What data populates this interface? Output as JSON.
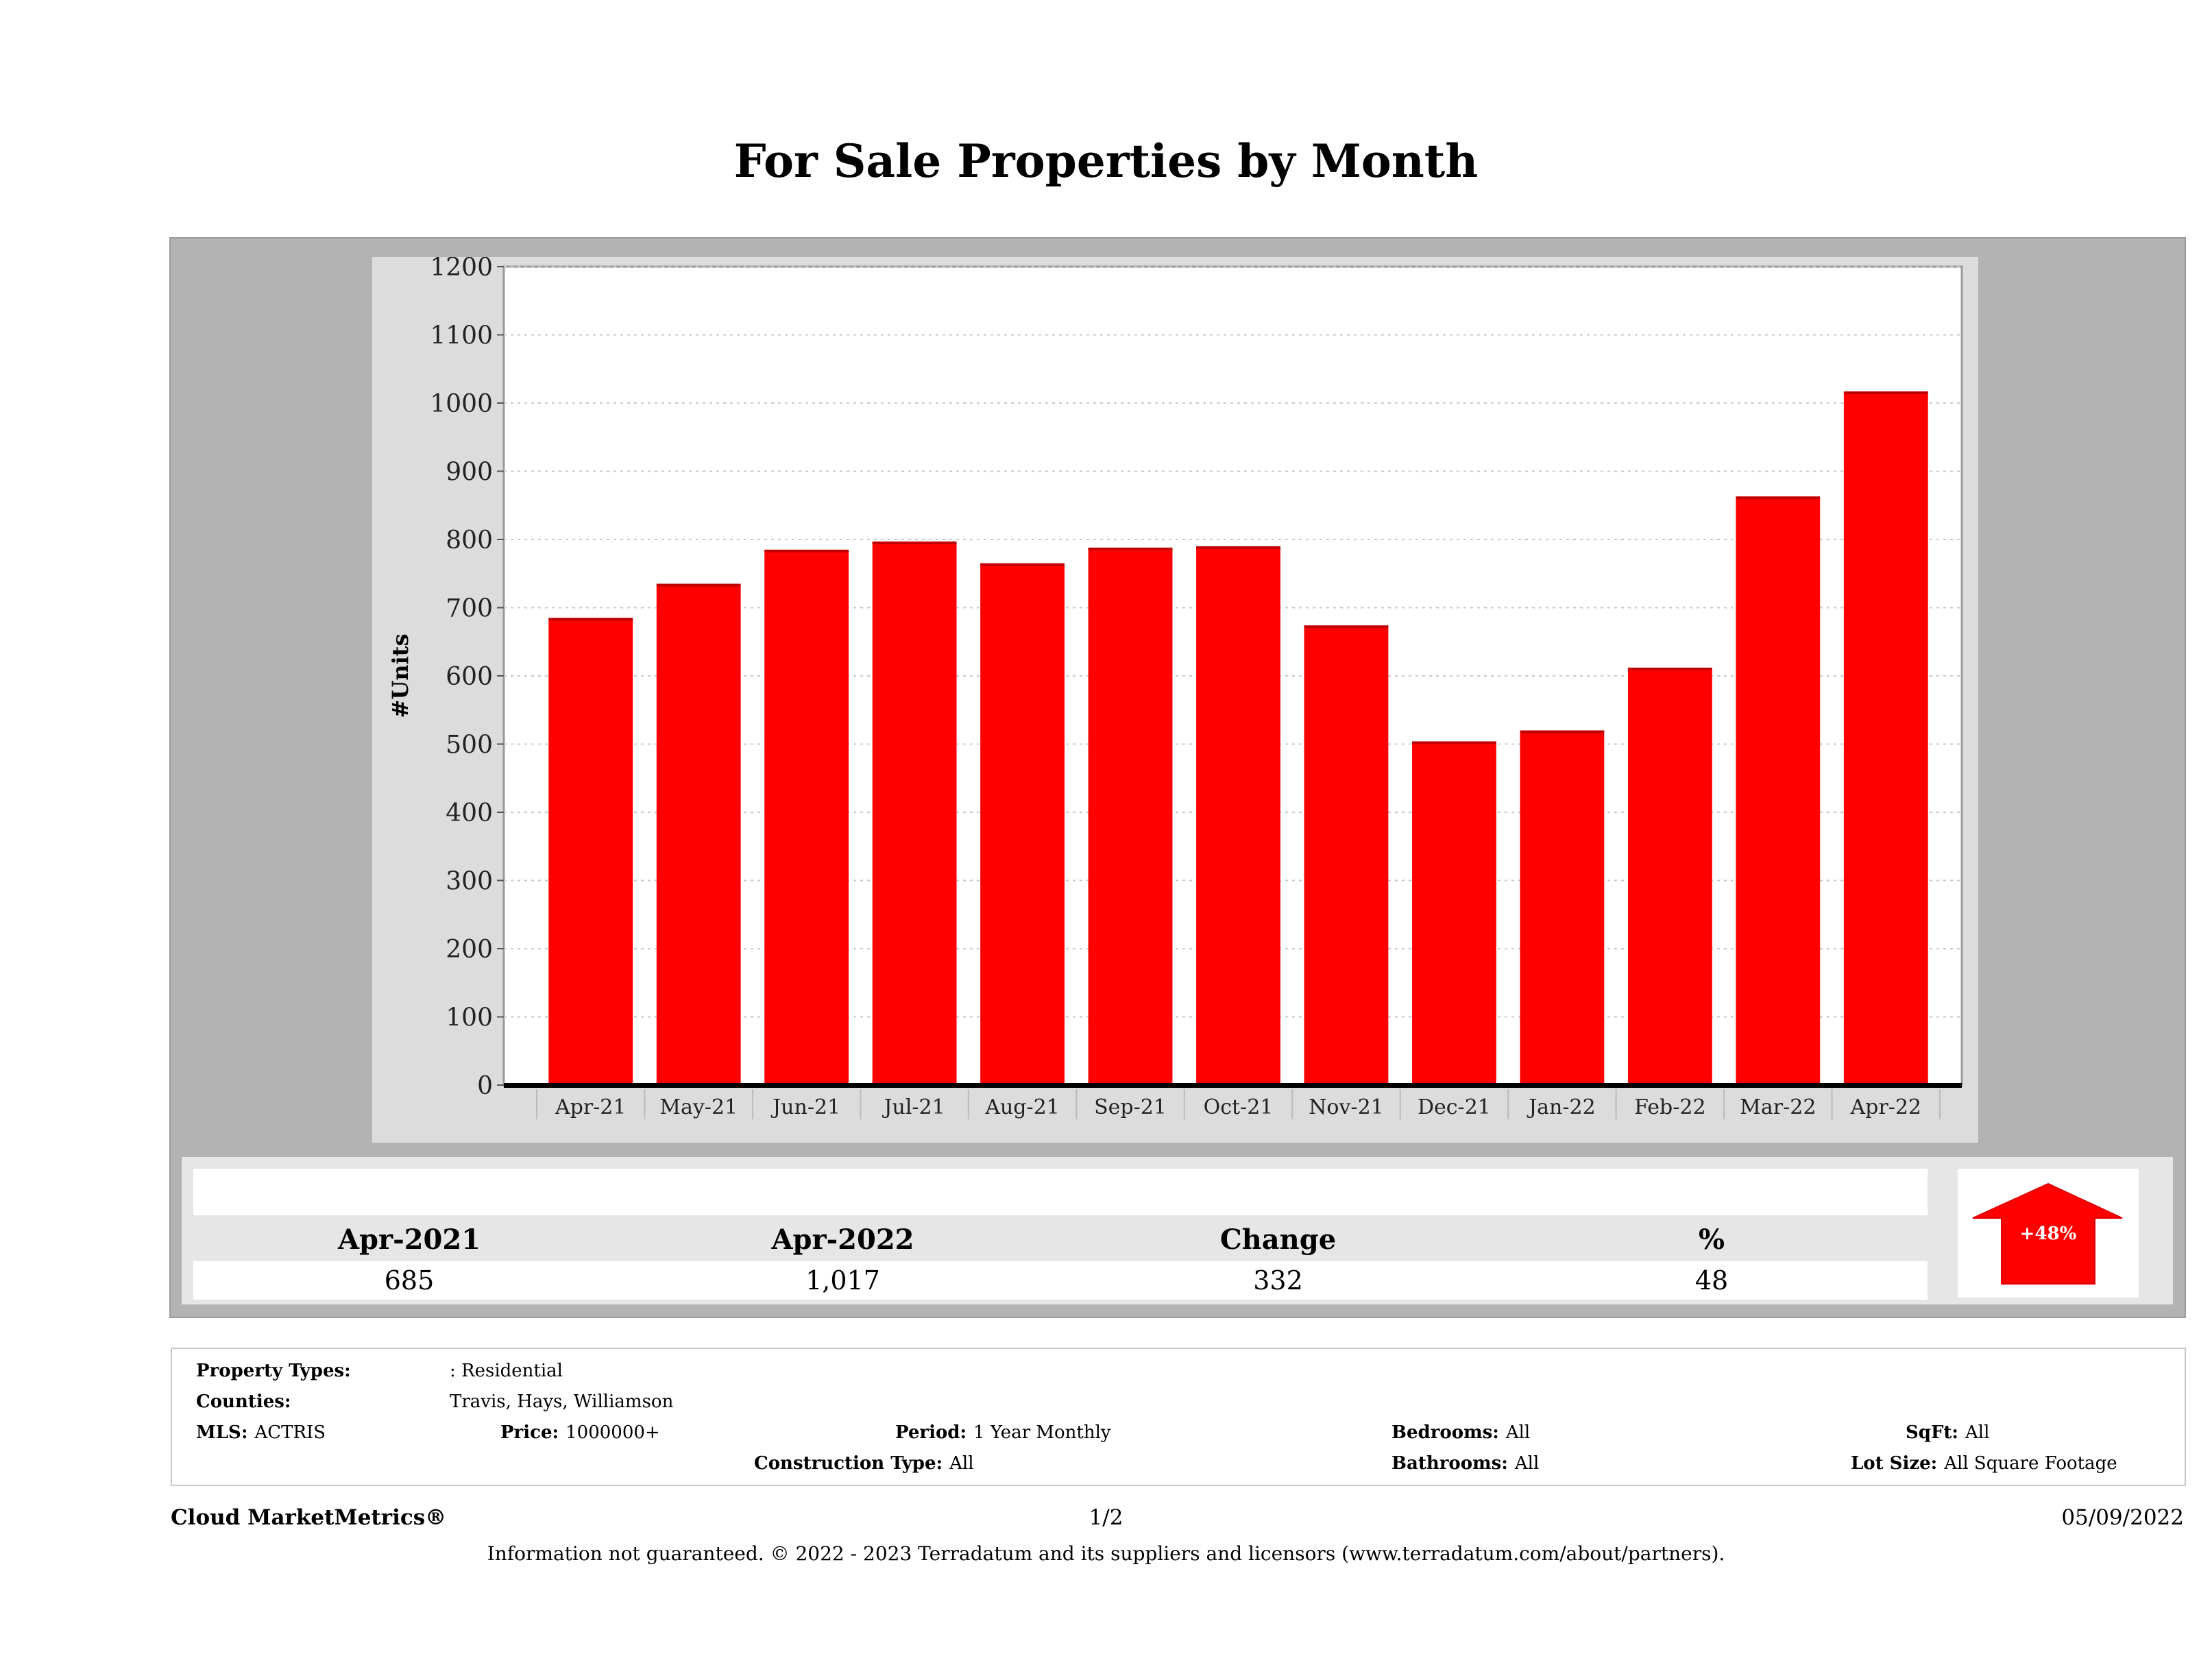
{
  "page": {
    "title": "For Sale Properties by Month"
  },
  "chart_data": {
    "type": "bar",
    "title": "For Sale Properties by Month",
    "xlabel": "",
    "ylabel": "#Units",
    "ylim": [
      0,
      1200
    ],
    "yticks": [
      0,
      100,
      200,
      300,
      400,
      500,
      600,
      700,
      800,
      900,
      1000,
      1100,
      1200
    ],
    "grid": true,
    "legend": "none",
    "bar_color": "#ff0000",
    "categories": [
      "Apr-21",
      "May-21",
      "Jun-21",
      "Jul-21",
      "Aug-21",
      "Sep-21",
      "Oct-21",
      "Nov-21",
      "Dec-21",
      "Jan-22",
      "Feb-22",
      "Mar-22",
      "Apr-22"
    ],
    "values": [
      685,
      735,
      785,
      797,
      765,
      788,
      790,
      674,
      504,
      520,
      612,
      863,
      1017
    ]
  },
  "summary": {
    "headers": [
      "Apr-2021",
      "Apr-2022",
      "Change",
      "%"
    ],
    "values": [
      "685",
      "1,017",
      "332",
      "48"
    ],
    "badge": "+48%",
    "badge_direction": "up",
    "badge_color": "#ff0000"
  },
  "criteria": {
    "property_types_label": "Property Types:",
    "property_types_value": ": Residential",
    "counties_label": "Counties:",
    "counties_value": "Travis, Hays, Williamson",
    "mls_label": "MLS:",
    "mls_value": "ACTRIS",
    "price_label": "Price:",
    "price_value": "1000000+",
    "period_label": "Period:",
    "period_value": "1 Year Monthly",
    "construction_label": "Construction Type:",
    "construction_value": "All",
    "bedrooms_label": "Bedrooms:",
    "bedrooms_value": "All",
    "bathrooms_label": "Bathrooms:",
    "bathrooms_value": "All",
    "sqft_label": "SqFt:",
    "sqft_value": "All",
    "lotsize_label": "Lot Size:",
    "lotsize_value": "All Square Footage"
  },
  "footer": {
    "brand": "Cloud MarketMetrics®",
    "page": "1/2",
    "date": "05/09/2022",
    "disclaimer": "Information not guaranteed. © 2022 - 2023 Terradatum and its suppliers and licensors (www.terradatum.com/about/partners)."
  }
}
